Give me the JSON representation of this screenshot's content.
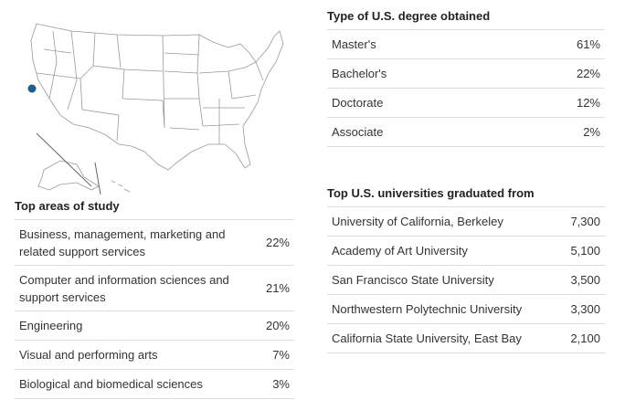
{
  "study_areas": {
    "title": "Top areas of study",
    "rows": [
      {
        "label": "Business, management, marketing and related support services",
        "value": "22%"
      },
      {
        "label": "Computer and information sciences and support services",
        "value": "21%"
      },
      {
        "label": "Engineering",
        "value": "20%"
      },
      {
        "label": "Visual and performing arts",
        "value": "7%"
      },
      {
        "label": "Biological and biomedical sciences",
        "value": "3%"
      }
    ]
  },
  "degree_types": {
    "title": "Type of U.S. degree obtained",
    "rows": [
      {
        "label": "Master's",
        "value": "61%"
      },
      {
        "label": "Bachelor's",
        "value": "22%"
      },
      {
        "label": "Doctorate",
        "value": "12%"
      },
      {
        "label": "Associate",
        "value": "2%"
      }
    ]
  },
  "universities": {
    "title": "Top U.S. universities graduated from",
    "rows": [
      {
        "label": "University of California, Berkeley",
        "value": "7,300"
      },
      {
        "label": "Academy of Art University",
        "value": "5,100"
      },
      {
        "label": "San Francisco State University",
        "value": "3,500"
      },
      {
        "label": "Northwestern Polytechnic University",
        "value": "3,300"
      },
      {
        "label": "California State University, East Bay",
        "value": "2,100"
      }
    ]
  }
}
